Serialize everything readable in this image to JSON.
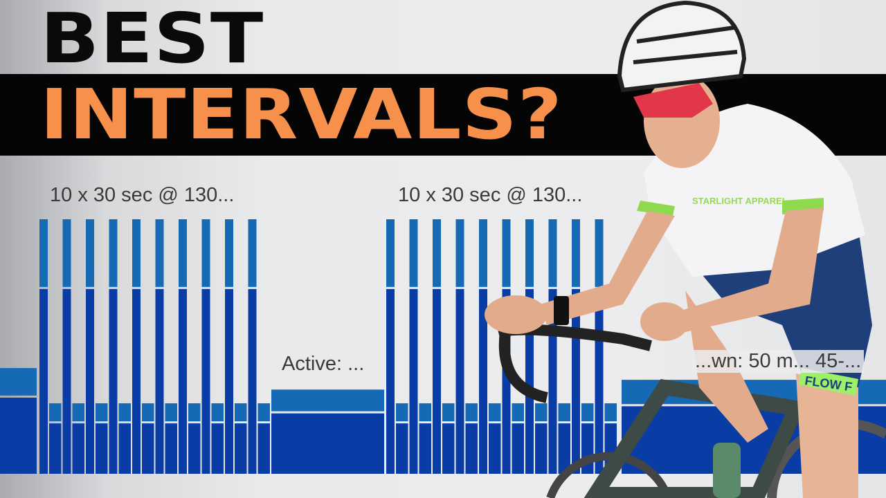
{
  "headline": {
    "line1": "BEST",
    "line2": "INTERVALS?"
  },
  "colors": {
    "headline_line1": "#0a0a0a",
    "headline_line2": "#f7904a",
    "band": "#050505",
    "bar_dark": "#0a3ca6",
    "bar_light": "#1669b4"
  },
  "workout": {
    "labels": {
      "set1": "10 x 30 sec @ 130...",
      "set2": "10 x 30 sec @ 130...",
      "active": "Active: ...",
      "cooldown": "...wn: 50 m... 45-..."
    },
    "levels": {
      "interval": 130,
      "recovery": 36,
      "warmup": 54,
      "active": 43,
      "cooldown": 48
    },
    "interval_count_per_set": 10
  },
  "rider": {
    "jersey_text": "STARLIGHT APPAREL",
    "shorts_text": "FLOW F"
  }
}
